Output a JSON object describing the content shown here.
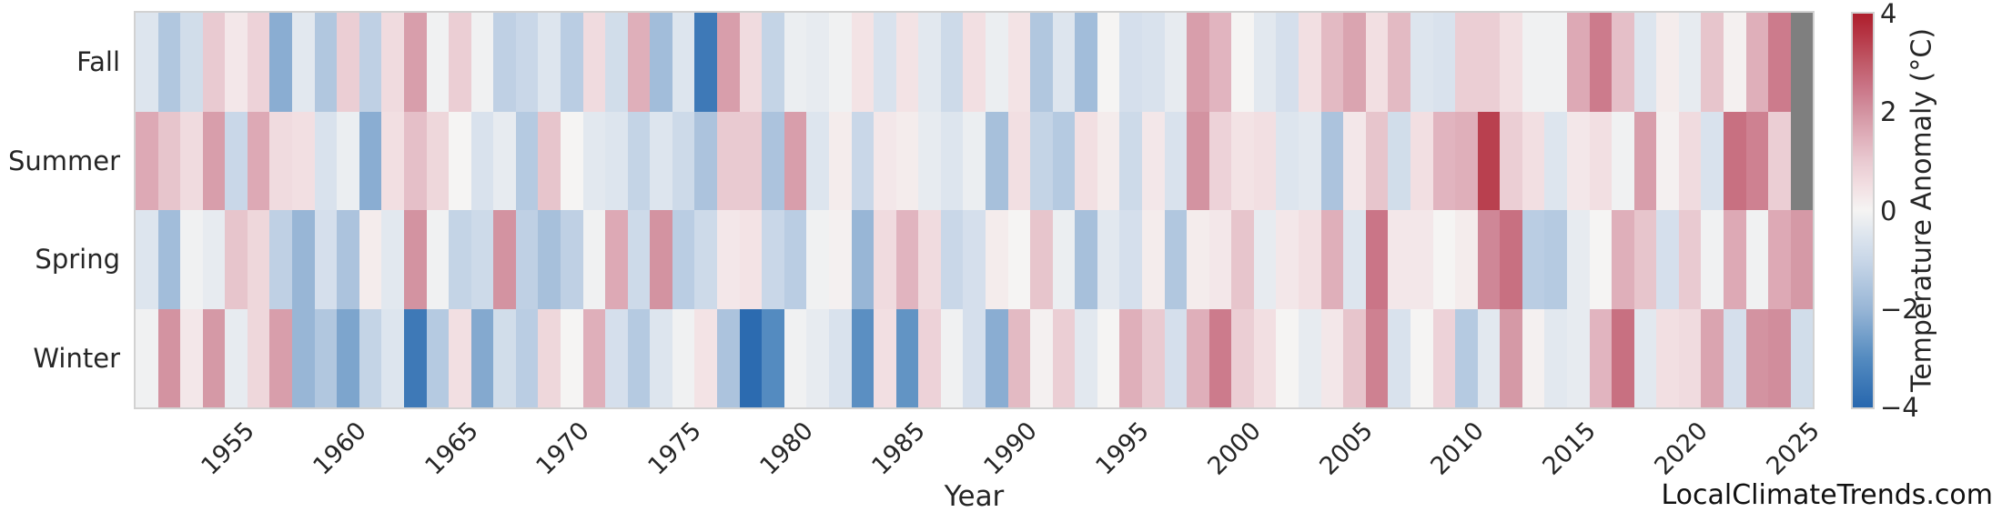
{
  "watermark": "LocalClimateTrends.com",
  "chart_data": {
    "type": "heatmap",
    "xlabel": "Year",
    "colorbar_label": "Temperature Anomaly (°C)",
    "colorbar_ticks": [
      4,
      2,
      0,
      -2,
      -4
    ],
    "vmin": -4,
    "vmax": 4,
    "nan_color": "#7f7f7f",
    "grid": false,
    "legend_position": "right-colorbar",
    "x_start_year": 1951,
    "x_end_year": 2025,
    "x_tick_years": [
      1955,
      1960,
      1965,
      1970,
      1975,
      1980,
      1985,
      1990,
      1995,
      2000,
      2005,
      2010,
      2015,
      2020,
      2025
    ],
    "colormap_anchors": [
      [
        -4,
        "#2767ae"
      ],
      [
        -3,
        "#548bc0"
      ],
      [
        -2,
        "#98b6d6"
      ],
      [
        -1,
        "#c9d7e8"
      ],
      [
        -0.5,
        "#dde5ee"
      ],
      [
        0,
        "#f5f4f3"
      ],
      [
        0.5,
        "#f2dfe2"
      ],
      [
        1,
        "#e9cad1"
      ],
      [
        1.5,
        "#dfafba"
      ],
      [
        2,
        "#d393a1"
      ],
      [
        2.5,
        "#ca7587"
      ],
      [
        3,
        "#c05a68"
      ],
      [
        3.5,
        "#b73a49"
      ],
      [
        4,
        "#ae1e2c"
      ]
    ],
    "categories_rows": [
      "Fall",
      "Summer",
      "Spring",
      "Winter"
    ],
    "series": [
      {
        "name": "Fall",
        "values": [
          -0.5,
          -1.5,
          -0.8,
          1.0,
          0.3,
          0.8,
          -2.2,
          -0.4,
          -1.5,
          0.9,
          -1.2,
          0.6,
          1.8,
          -0.1,
          0.9,
          -0.1,
          -1.2,
          -1.0,
          -0.5,
          -1.3,
          0.6,
          -0.8,
          1.5,
          -1.8,
          -0.5,
          -3.5,
          1.8,
          0.6,
          -1.1,
          -0.2,
          -0.3,
          -0.1,
          0.4,
          -0.6,
          0.4,
          -0.4,
          -0.9,
          0.5,
          -0.2,
          0.4,
          -1.5,
          -0.5,
          -1.8,
          0.0,
          -0.7,
          -0.6,
          -0.3,
          1.8,
          1.4,
          0.0,
          -0.4,
          -0.7,
          0.5,
          1.3,
          1.7,
          0.5,
          1.3,
          -0.5,
          -0.6,
          0.9,
          0.9,
          0.5,
          -0.1,
          -0.1,
          1.6,
          2.4,
          1.2,
          -0.5,
          0.2,
          -0.3,
          1.1,
          0.1,
          1.5,
          2.4,
          null
        ]
      },
      {
        "name": "Summer",
        "values": [
          1.6,
          1.1,
          0.6,
          1.8,
          -1.0,
          1.6,
          0.6,
          0.5,
          -0.6,
          -0.2,
          -2.2,
          0.5,
          1.2,
          0.7,
          0.0,
          -0.6,
          -0.3,
          -1.4,
          1.1,
          0.0,
          -0.4,
          -0.5,
          -1.1,
          -0.5,
          -0.9,
          -1.6,
          1.0,
          1.0,
          -1.6,
          1.8,
          -0.5,
          0.2,
          -1.0,
          0.3,
          0.2,
          -0.3,
          -0.5,
          -0.2,
          -1.7,
          0.5,
          -1.1,
          -1.4,
          0.5,
          0.2,
          -0.9,
          0.3,
          -0.6,
          2.0,
          0.8,
          0.4,
          0.5,
          -0.5,
          -0.4,
          -1.6,
          0.3,
          1.1,
          -0.8,
          0.5,
          1.4,
          1.5,
          3.4,
          0.9,
          0.5,
          -0.5,
          0.3,
          0.5,
          -0.1,
          1.8,
          0.1,
          0.6,
          -0.6,
          2.6,
          2.3,
          0.9,
          null
        ]
      },
      {
        "name": "Spring",
        "values": [
          -0.5,
          -1.8,
          -0.1,
          -0.3,
          1.1,
          0.7,
          -1.2,
          -2.0,
          -0.7,
          -1.6,
          0.2,
          -0.4,
          2.0,
          -0.1,
          -1.1,
          -0.9,
          2.0,
          -1.2,
          -1.7,
          -1.2,
          -0.1,
          1.6,
          -0.9,
          2.0,
          -1.3,
          -0.9,
          0.3,
          0.4,
          -1.0,
          -1.3,
          -0.1,
          0.1,
          -2.0,
          0.6,
          1.4,
          0.6,
          -1.0,
          -0.7,
          0.2,
          0.0,
          1.1,
          -0.2,
          -1.7,
          -0.4,
          -0.7,
          0.2,
          -1.5,
          0.2,
          0.3,
          1.1,
          -0.3,
          0.3,
          0.5,
          1.5,
          -0.5,
          2.5,
          0.3,
          0.3,
          0.0,
          0.2,
          2.2,
          2.6,
          -1.3,
          -1.4,
          -0.3,
          0.0,
          1.5,
          1.1,
          -0.7,
          1.0,
          -0.1,
          1.6,
          -0.1,
          1.6,
          1.9
        ]
      },
      {
        "name": "Winter",
        "values": [
          -0.1,
          2.0,
          0.3,
          1.9,
          -0.3,
          0.7,
          1.8,
          -2.0,
          -1.5,
          -2.4,
          -1.1,
          -0.5,
          -3.5,
          -1.4,
          0.5,
          -2.3,
          -0.8,
          -1.3,
          0.7,
          0.0,
          1.5,
          -0.7,
          -1.4,
          -0.5,
          -0.1,
          0.4,
          -1.6,
          -3.9,
          -3.0,
          -0.1,
          -0.3,
          -0.6,
          -2.9,
          0.5,
          -2.8,
          0.8,
          -0.1,
          -0.7,
          -2.2,
          1.3,
          0.1,
          0.9,
          -0.4,
          0.0,
          1.5,
          1.0,
          -0.7,
          1.5,
          2.4,
          0.9,
          0.5,
          0.0,
          -0.3,
          0.3,
          1.1,
          2.3,
          -0.6,
          0.0,
          0.8,
          -1.4,
          -0.4,
          1.9,
          0.1,
          -0.4,
          -0.3,
          1.4,
          2.6,
          -0.4,
          0.5,
          0.6,
          1.7,
          -0.7,
          2.0,
          2.1,
          -0.8
        ]
      }
    ]
  }
}
